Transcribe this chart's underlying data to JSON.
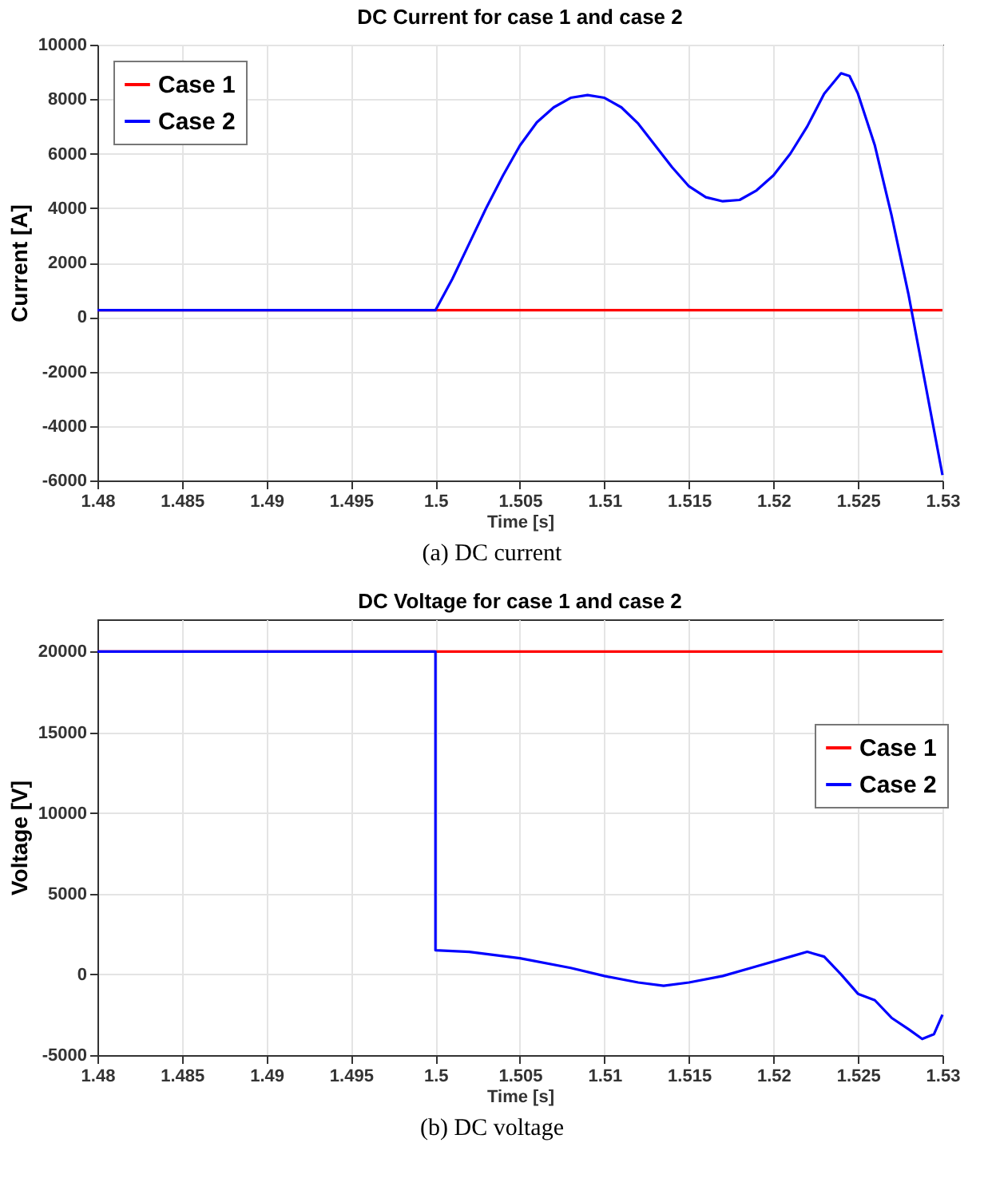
{
  "chart_data": [
    {
      "type": "line",
      "title": "DC Current for case 1 and case 2",
      "xlabel": "Time [s]",
      "ylabel": "Current [A]",
      "xlim": [
        1.48,
        1.53
      ],
      "xticks": [
        1.48,
        1.485,
        1.49,
        1.495,
        1.5,
        1.505,
        1.51,
        1.515,
        1.52,
        1.525,
        1.53
      ],
      "ylim": [
        -6000,
        10000
      ],
      "yticks": [
        -6000,
        -4000,
        -2000,
        0,
        2000,
        4000,
        6000,
        8000,
        10000
      ],
      "grid": true,
      "legend": "top left",
      "annotations": [
        "(a) DC current"
      ],
      "series": [
        {
          "name": "Case 1",
          "color": "#ff0000",
          "x": [
            1.48,
            1.53
          ],
          "values": [
            250,
            250
          ]
        },
        {
          "name": "Case 2",
          "color": "#0000ff",
          "x": [
            1.48,
            1.5,
            1.501,
            1.502,
            1.503,
            1.504,
            1.505,
            1.506,
            1.507,
            1.508,
            1.509,
            1.51,
            1.511,
            1.512,
            1.513,
            1.514,
            1.515,
            1.516,
            1.517,
            1.518,
            1.519,
            1.52,
            1.521,
            1.522,
            1.523,
            1.524,
            1.5245,
            1.525,
            1.526,
            1.527,
            1.528,
            1.529,
            1.53
          ],
          "values": [
            250,
            250,
            1400,
            2700,
            4000,
            5200,
            6300,
            7150,
            7700,
            8050,
            8150,
            8050,
            7700,
            7100,
            6300,
            5500,
            4800,
            4400,
            4250,
            4300,
            4650,
            5200,
            6000,
            7000,
            8200,
            8950,
            8850,
            8200,
            6300,
            3700,
            800,
            -2500,
            -5800
          ]
        }
      ]
    },
    {
      "type": "line",
      "title": "DC Voltage for case 1 and case 2",
      "xlabel": "Time [s]",
      "ylabel": "Voltage [V]",
      "xlim": [
        1.48,
        1.53
      ],
      "xticks": [
        1.48,
        1.485,
        1.49,
        1.495,
        1.5,
        1.505,
        1.51,
        1.515,
        1.52,
        1.525,
        1.53
      ],
      "ylim": [
        -5000,
        22000
      ],
      "yticks": [
        -5000,
        0,
        5000,
        10000,
        15000,
        20000
      ],
      "grid": true,
      "legend": "right",
      "annotations": [
        "(b) DC voltage"
      ],
      "series": [
        {
          "name": "Case 1",
          "color": "#ff0000",
          "x": [
            1.48,
            1.53
          ],
          "values": [
            20000,
            20000
          ]
        },
        {
          "name": "Case 2",
          "color": "#0000ff",
          "x": [
            1.48,
            1.5,
            1.5,
            1.502,
            1.505,
            1.508,
            1.51,
            1.512,
            1.5135,
            1.515,
            1.517,
            1.519,
            1.521,
            1.522,
            1.523,
            1.524,
            1.525,
            1.526,
            1.527,
            1.528,
            1.5288,
            1.5295,
            1.53
          ],
          "values": [
            20000,
            20000,
            1500,
            1400,
            1000,
            400,
            -100,
            -500,
            -700,
            -500,
            -100,
            500,
            1100,
            1400,
            1100,
            0,
            -1200,
            -1600,
            -2700,
            -3400,
            -4000,
            -3700,
            -2500
          ]
        }
      ]
    }
  ]
}
